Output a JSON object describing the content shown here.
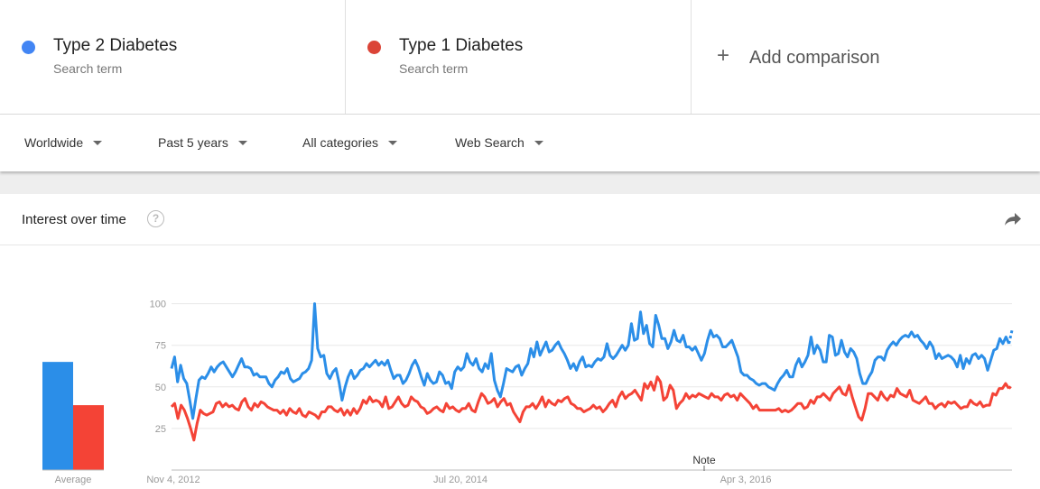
{
  "terms": [
    {
      "name": "Type 2 Diabetes",
      "sub": "Search term",
      "color": "#4285f4"
    },
    {
      "name": "Type 1 Diabetes",
      "sub": "Search term",
      "color": "#db4437"
    }
  ],
  "add_comparison": {
    "label": "Add comparison"
  },
  "filters": {
    "region": "Worldwide",
    "period": "Past 5 years",
    "category": "All categories",
    "search_type": "Web Search"
  },
  "card": {
    "title": "Interest over time"
  },
  "chart_data": {
    "type": "line",
    "title": "Interest over time",
    "ylim": [
      0,
      100
    ],
    "y_ticks": [
      25,
      50,
      75,
      100
    ],
    "x_ticks": [
      "Nov 4, 2012",
      "Jul 20, 2014",
      "Apr 3, 2016"
    ],
    "grid": true,
    "legend": "top",
    "annotation": "Note",
    "average_label": "Average",
    "series": [
      {
        "name": "Type 2 Diabetes",
        "color": "#2b8ee8",
        "average": 65,
        "partial_last": true,
        "values": [
          61,
          68,
          53,
          63,
          55,
          52,
          42,
          31,
          43,
          54,
          56,
          55,
          58,
          62,
          59,
          62,
          64,
          65,
          62,
          59,
          56,
          59,
          63,
          67,
          62,
          62,
          61,
          57,
          58,
          56,
          56,
          56,
          52,
          50,
          54,
          56,
          59,
          58,
          61,
          55,
          53,
          54,
          55,
          58,
          59,
          61,
          66,
          100,
          73,
          68,
          69,
          58,
          55,
          59,
          61,
          53,
          42,
          50,
          56,
          60,
          55,
          57,
          60,
          61,
          64,
          62,
          64,
          66,
          63,
          65,
          63,
          66,
          60,
          55,
          57,
          57,
          52,
          54,
          58,
          63,
          66,
          62,
          56,
          51,
          58,
          54,
          52,
          53,
          59,
          57,
          52,
          53,
          49,
          59,
          62,
          60,
          62,
          70,
          65,
          63,
          67,
          61,
          59,
          64,
          61,
          70,
          54,
          48,
          44,
          52,
          61,
          60,
          59,
          62,
          63,
          57,
          61,
          64,
          73,
          68,
          77,
          69,
          73,
          77,
          71,
          72,
          75,
          77,
          73,
          70,
          66,
          61,
          64,
          60,
          65,
          68,
          62,
          63,
          62,
          65,
          67,
          66,
          68,
          76,
          69,
          67,
          69,
          72,
          75,
          72,
          75,
          88,
          78,
          79,
          95,
          82,
          87,
          76,
          74,
          93,
          87,
          79,
          79,
          73,
          77,
          84,
          78,
          77,
          81,
          74,
          74,
          72,
          74,
          70,
          66,
          70,
          78,
          84,
          80,
          81,
          79,
          74,
          74,
          76,
          78,
          73,
          68,
          59,
          57,
          57,
          55,
          54,
          52,
          51,
          52,
          52,
          50,
          49,
          48,
          52,
          55,
          57,
          60,
          56,
          56,
          63,
          67,
          62,
          65,
          69,
          80,
          70,
          75,
          72,
          65,
          65,
          81,
          80,
          69,
          70,
          78,
          71,
          68,
          73,
          71,
          67,
          58,
          52,
          52,
          56,
          59,
          66,
          68,
          68,
          66,
          72,
          75,
          77,
          75,
          78,
          80,
          81,
          80,
          83,
          80,
          81,
          78,
          76,
          73,
          77,
          74,
          67,
          70,
          67,
          68,
          69,
          68,
          66,
          62,
          69,
          61,
          67,
          64,
          69,
          70,
          67,
          69,
          67,
          60,
          66,
          72,
          73,
          79,
          76,
          80,
          76,
          84
        ]
      },
      {
        "name": "Type 1 Diabetes",
        "color": "#f44336",
        "average": 39,
        "partial_last": true,
        "values": [
          38,
          40,
          31,
          39,
          36,
          31,
          25,
          18,
          28,
          36,
          34,
          33,
          34,
          35,
          40,
          41,
          38,
          40,
          38,
          39,
          37,
          36,
          41,
          43,
          38,
          36,
          40,
          38,
          41,
          40,
          38,
          37,
          36,
          36,
          34,
          36,
          33,
          37,
          35,
          34,
          37,
          33,
          32,
          35,
          34,
          33,
          31,
          35,
          35,
          38,
          38,
          36,
          35,
          37,
          33,
          36,
          33,
          37,
          34,
          37,
          42,
          40,
          44,
          41,
          42,
          41,
          38,
          44,
          37,
          38,
          41,
          44,
          40,
          38,
          39,
          44,
          42,
          41,
          38,
          37,
          34,
          35,
          37,
          38,
          36,
          35,
          40,
          37,
          38,
          36,
          35,
          37,
          37,
          40,
          36,
          35,
          41,
          46,
          44,
          40,
          41,
          43,
          38,
          41,
          43,
          39,
          40,
          35,
          32,
          29,
          35,
          38,
          38,
          40,
          37,
          40,
          44,
          38,
          42,
          40,
          39,
          42,
          41,
          43,
          44,
          40,
          39,
          37,
          37,
          35,
          36,
          37,
          39,
          37,
          38,
          35,
          37,
          40,
          42,
          38,
          44,
          47,
          43,
          45,
          46,
          48,
          45,
          42,
          52,
          49,
          53,
          48,
          56,
          53,
          42,
          44,
          51,
          48,
          37,
          40,
          42,
          46,
          43,
          45,
          44,
          46,
          45,
          44,
          43,
          46,
          44,
          44,
          42,
          45,
          46,
          44,
          45,
          42,
          46,
          44,
          42,
          40,
          37,
          39,
          36,
          36,
          36,
          36,
          36,
          36,
          37,
          35,
          36,
          35,
          36,
          38,
          40,
          40,
          37,
          38,
          42,
          40,
          44,
          44,
          46,
          44,
          42,
          46,
          48,
          50,
          46,
          45,
          51,
          44,
          38,
          32,
          30,
          37,
          46,
          46,
          44,
          42,
          47,
          44,
          42,
          45,
          44,
          49,
          46,
          45,
          44,
          48,
          42,
          41,
          40,
          42,
          44,
          40,
          40,
          37,
          39,
          40,
          38,
          41,
          40,
          41,
          39,
          37,
          38,
          38,
          42,
          40,
          39,
          41,
          38,
          39,
          39,
          46,
          45,
          49,
          49,
          52,
          49,
          51
        ]
      }
    ]
  }
}
